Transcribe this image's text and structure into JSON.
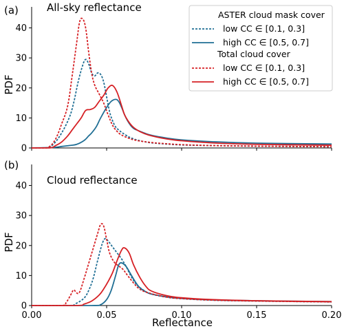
{
  "colors": {
    "blue": "#1f6e94",
    "red": "#d62024"
  },
  "legend": {
    "group1_title": "ASTER cloud mask cover",
    "group2_title": "Total cloud cover",
    "low_label": "low CC ∈ [0.1, 0.3]",
    "high_label": "high CC ∈ [0.5, 0.7]"
  },
  "xlabel": "Reflectance",
  "chart_data": [
    {
      "type": "line",
      "panel_letter": "(a)",
      "title": "All-sky reflectance",
      "ylabel": "PDF",
      "xlim": [
        0.0,
        0.2
      ],
      "ylim": [
        0,
        47
      ],
      "xticks": [
        "0.00",
        "0.05",
        "0.10",
        "0.15",
        "0.20"
      ],
      "yticks": [
        0,
        10,
        20,
        30,
        40
      ],
      "show_xtick_labels": false,
      "legend_location": "top-right",
      "series": [
        {
          "key": "aster_low",
          "color": "blue",
          "dash": "dashed",
          "x": [
            0.0,
            0.01,
            0.015,
            0.02,
            0.025,
            0.028,
            0.031,
            0.034,
            0.036,
            0.038,
            0.04,
            0.042,
            0.044,
            0.046,
            0.048,
            0.05,
            0.052,
            0.054,
            0.056,
            0.058,
            0.06,
            0.063,
            0.066,
            0.07,
            0.075,
            0.08,
            0.09,
            0.1,
            0.12,
            0.15,
            0.2
          ],
          "y": [
            0,
            0,
            1.5,
            5,
            10,
            15,
            22,
            27.5,
            29.5,
            28,
            25,
            24,
            25,
            24.5,
            22,
            17,
            12,
            9,
            7,
            6,
            5.2,
            4.2,
            3.4,
            2.7,
            2.1,
            1.7,
            1.3,
            1.0,
            0.8,
            0.6,
            0.4
          ]
        },
        {
          "key": "aster_high",
          "color": "blue",
          "dash": "solid",
          "x": [
            0.0,
            0.015,
            0.02,
            0.025,
            0.03,
            0.035,
            0.038,
            0.04,
            0.043,
            0.046,
            0.05,
            0.053,
            0.056,
            0.058,
            0.06,
            0.062,
            0.064,
            0.066,
            0.068,
            0.07,
            0.075,
            0.08,
            0.09,
            0.1,
            0.12,
            0.15,
            0.2
          ],
          "y": [
            0,
            0.2,
            0.5,
            0.8,
            1.2,
            2.5,
            4,
            5,
            7,
            10,
            13.5,
            15.5,
            16.2,
            15.5,
            13.5,
            11,
            9,
            7.5,
            6.5,
            6.0,
            5.0,
            4.2,
            3.3,
            2.7,
            2.1,
            1.6,
            1.3
          ]
        },
        {
          "key": "total_low",
          "color": "red",
          "dash": "dashed",
          "x": [
            0.0,
            0.008,
            0.012,
            0.016,
            0.02,
            0.024,
            0.027,
            0.03,
            0.032,
            0.034,
            0.036,
            0.038,
            0.04,
            0.042,
            0.045,
            0.048,
            0.051,
            0.054,
            0.057,
            0.06,
            0.065,
            0.07,
            0.08,
            0.09,
            0.1,
            0.12,
            0.15,
            0.2
          ],
          "y": [
            0,
            0,
            0.5,
            3,
            8,
            14,
            24,
            35,
            42,
            43,
            40,
            32,
            25,
            21,
            18,
            15,
            11,
            7.5,
            5.5,
            4.3,
            3.2,
            2.5,
            1.8,
            1.4,
            1.1,
            0.8,
            0.6,
            0.4
          ]
        },
        {
          "key": "total_high",
          "color": "red",
          "dash": "solid",
          "x": [
            0.0,
            0.012,
            0.016,
            0.02,
            0.024,
            0.027,
            0.03,
            0.033,
            0.036,
            0.039,
            0.042,
            0.045,
            0.048,
            0.051,
            0.054,
            0.057,
            0.06,
            0.062,
            0.065,
            0.068,
            0.072,
            0.078,
            0.09,
            0.1,
            0.12,
            0.15,
            0.2
          ],
          "y": [
            0,
            0,
            0.8,
            2,
            4,
            6,
            8,
            10,
            12.5,
            12.8,
            13.5,
            15.5,
            17.5,
            20,
            20.8,
            18.5,
            14,
            11,
            8.5,
            6.8,
            5.5,
            4.3,
            3.0,
            2.4,
            1.7,
            1.2,
            0.9
          ]
        }
      ]
    },
    {
      "type": "line",
      "panel_letter": "(b)",
      "title": "Cloud reflectance",
      "ylabel": "PDF",
      "xlim": [
        0.0,
        0.2
      ],
      "ylim": [
        0,
        47
      ],
      "xticks": [
        "0.00",
        "0.05",
        "0.10",
        "0.15",
        "0.20"
      ],
      "yticks": [
        0,
        10,
        20,
        30,
        40
      ],
      "show_xtick_labels": true,
      "series": [
        {
          "key": "aster_low",
          "color": "blue",
          "dash": "dashed",
          "x": [
            0.0,
            0.025,
            0.03,
            0.035,
            0.038,
            0.041,
            0.044,
            0.047,
            0.049,
            0.051,
            0.054,
            0.057,
            0.06,
            0.063,
            0.066,
            0.07,
            0.075,
            0.08,
            0.09,
            0.1,
            0.12,
            0.15,
            0.2
          ],
          "y": [
            0,
            0,
            0.8,
            2.5,
            5,
            9,
            15,
            20.5,
            22.3,
            21.5,
            19.5,
            17.5,
            15.5,
            13,
            10,
            7,
            5,
            3.8,
            2.8,
            2.3,
            1.8,
            1.5,
            1.2
          ]
        },
        {
          "key": "aster_high",
          "color": "blue",
          "dash": "solid",
          "x": [
            0.0,
            0.04,
            0.046,
            0.05,
            0.053,
            0.056,
            0.058,
            0.06,
            0.063,
            0.066,
            0.069,
            0.072,
            0.076,
            0.08,
            0.09,
            0.1,
            0.12,
            0.15,
            0.2
          ],
          "y": [
            0,
            0,
            0.3,
            2,
            5,
            10,
            13.5,
            14.2,
            13,
            10.5,
            8,
            6,
            4.6,
            3.8,
            2.9,
            2.4,
            1.9,
            1.6,
            1.3
          ]
        },
        {
          "key": "total_low",
          "color": "red",
          "dash": "dashed",
          "x": [
            0.0,
            0.02,
            0.023,
            0.026,
            0.028,
            0.03,
            0.032,
            0.035,
            0.038,
            0.041,
            0.044,
            0.046,
            0.048,
            0.05,
            0.052,
            0.055,
            0.058,
            0.061,
            0.064,
            0.068,
            0.072,
            0.078,
            0.09,
            0.1,
            0.12,
            0.15,
            0.2
          ],
          "y": [
            0,
            0,
            1,
            3.5,
            5.2,
            4.2,
            4.5,
            9,
            14,
            19,
            24,
            27,
            26.5,
            22,
            17.5,
            14.5,
            13.2,
            12,
            10,
            7.5,
            5.5,
            4.2,
            2.8,
            2.3,
            1.8,
            1.5,
            1.2
          ]
        },
        {
          "key": "total_high",
          "color": "red",
          "dash": "solid",
          "x": [
            0.0,
            0.03,
            0.035,
            0.04,
            0.045,
            0.048,
            0.051,
            0.054,
            0.057,
            0.06,
            0.062,
            0.065,
            0.068,
            0.072,
            0.076,
            0.08,
            0.09,
            0.1,
            0.12,
            0.15,
            0.2
          ],
          "y": [
            0,
            0,
            0.5,
            1.5,
            3.5,
            5.5,
            8,
            11,
            15,
            18.5,
            19.2,
            17.5,
            13.5,
            9.5,
            6.5,
            4.8,
            3.3,
            2.6,
            2.0,
            1.6,
            1.3
          ]
        }
      ]
    }
  ]
}
